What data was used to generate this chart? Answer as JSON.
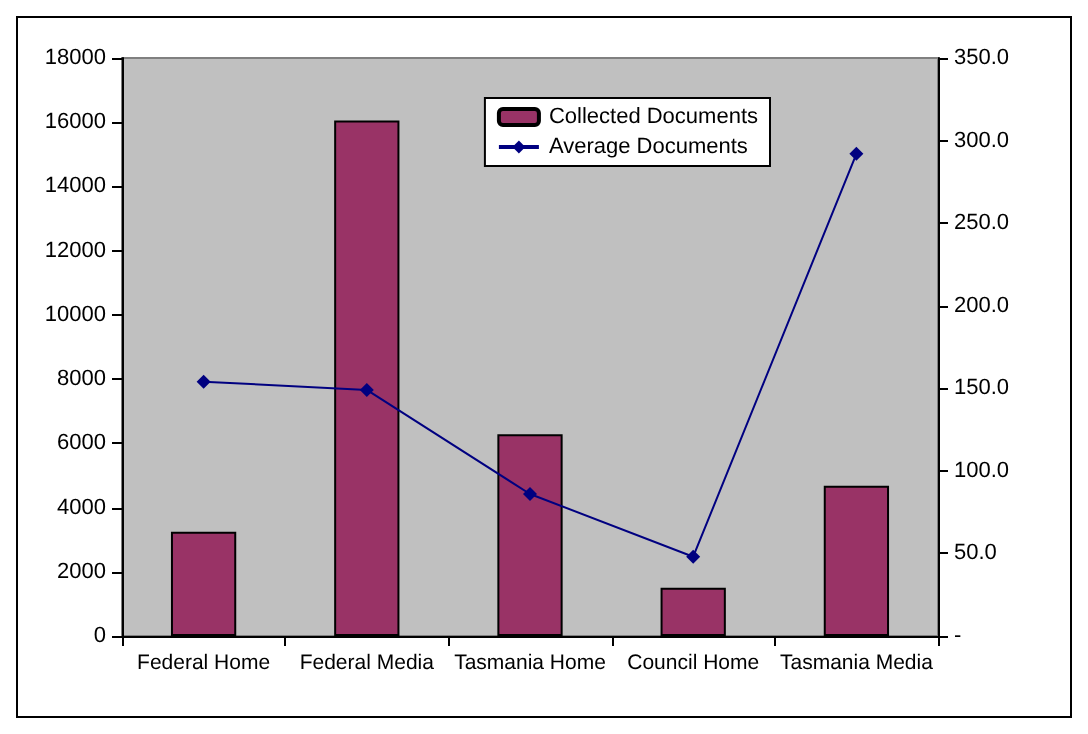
{
  "chart_data": {
    "type": "bar",
    "categories": [
      "Federal Home",
      "Federal Media",
      "Tasmania Home",
      "Council Home",
      "Tasmania Media"
    ],
    "series": [
      {
        "name": "Collected Documents",
        "color": "#993366",
        "values": [
          3250,
          16050,
          6280,
          1500,
          4680
        ]
      },
      {
        "name": "Average Documents",
        "type": "line",
        "axis": "y2",
        "color": "#000080",
        "values": [
          154,
          149,
          86,
          48,
          292
        ]
      }
    ],
    "ylim": [
      0,
      18000
    ],
    "yticks": [
      0,
      2000,
      4000,
      6000,
      8000,
      10000,
      12000,
      14000,
      16000,
      18000
    ],
    "y2lim": [
      0,
      350
    ],
    "y2ticks": [
      {
        "value": 0,
        "label": "-"
      },
      {
        "value": 50,
        "label": "50.0"
      },
      {
        "value": 100,
        "label": "100.0"
      },
      {
        "value": 150,
        "label": "150.0"
      },
      {
        "value": 200,
        "label": "200.0"
      },
      {
        "value": 250,
        "label": "250.0"
      },
      {
        "value": 300,
        "label": "300.0"
      },
      {
        "value": 350,
        "label": "350.0"
      }
    ],
    "marker": "diamond",
    "legend": "top right",
    "grid": false
  }
}
